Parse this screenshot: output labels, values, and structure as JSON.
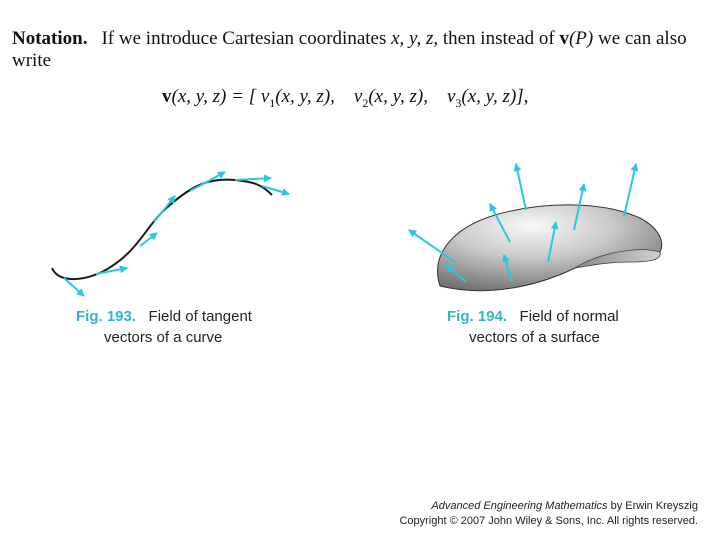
{
  "notation": {
    "label": "Notation.",
    "text_before": "If we introduce Cartesian coordinates ",
    "coords": "x, y, z,",
    "text_middle": " then instead of ",
    "v_symbol": "v",
    "vp_arg": "(P)",
    "text_after": " we can also write"
  },
  "equation": {
    "lhs": "v",
    "lhs_args": "(x, y, z) = [",
    "v1": "v",
    "v1_sub": "1",
    "v1_args": "(x, y, z),",
    "v2": "v",
    "v2_sub": "2",
    "v2_args": "(x, y, z),",
    "v3": "v",
    "v3_sub": "3",
    "v3_args": "(x, y, z)],"
  },
  "figure_193": {
    "number": "Fig. 193.",
    "caption_line1": "Field of tangent",
    "caption_line2": "vectors of a curve"
  },
  "figure_194": {
    "number": "Fig. 194.",
    "caption_line1": "Field of normal",
    "caption_line2": "vectors of a surface"
  },
  "credit": {
    "book_title": "Advanced Engineering Mathematics",
    "author_text": " by Erwin Kreyszig",
    "copyright": "Copyright © 2007 John Wiley & Sons, Inc.  All rights reserved."
  },
  "colors": {
    "vector": "#29c6e6",
    "curve": "#1a1a1a",
    "accent_caption": "#36b4c6"
  }
}
